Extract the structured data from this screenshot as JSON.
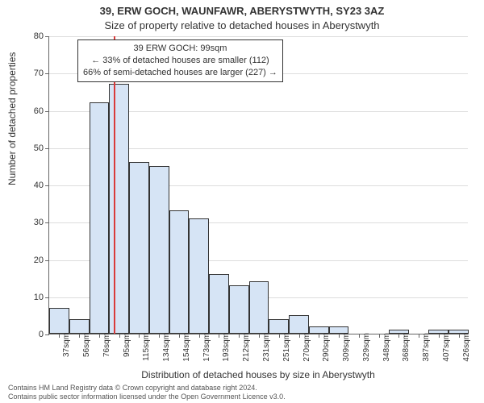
{
  "titles": {
    "line1": "39, ERW GOCH, WAUNFAWR, ABERYSTWYTH, SY23 3AZ",
    "line2": "Size of property relative to detached houses in Aberystwyth"
  },
  "axes": {
    "ylabel": "Number of detached properties",
    "xlabel": "Distribution of detached houses by size in Aberystwyth",
    "ylim": [
      0,
      80
    ],
    "yticks": [
      0,
      10,
      20,
      30,
      40,
      50,
      60,
      70,
      80
    ],
    "grid_color": "#dddddd",
    "axis_color": "#666666",
    "label_fontsize": 12,
    "tick_fontsize": 11
  },
  "chart": {
    "type": "histogram",
    "bar_fill": "#d6e4f5",
    "bar_stroke": "#333333",
    "categories": [
      "37sqm",
      "56sqm",
      "76sqm",
      "95sqm",
      "115sqm",
      "134sqm",
      "154sqm",
      "173sqm",
      "193sqm",
      "212sqm",
      "231sqm",
      "251sqm",
      "270sqm",
      "290sqm",
      "309sqm",
      "329sqm",
      "348sqm",
      "368sqm",
      "387sqm",
      "407sqm",
      "426sqm"
    ],
    "values": [
      7,
      4,
      62,
      67,
      46,
      45,
      33,
      31,
      16,
      13,
      14,
      4,
      5,
      2,
      2,
      0,
      0,
      1,
      0,
      1,
      1
    ],
    "plot_bg": "#ffffff"
  },
  "marker": {
    "bin_index": 3,
    "fraction_in_bin": 0.25,
    "color": "#d93a3a",
    "width": 2
  },
  "annotation": {
    "line1": "39 ERW GOCH: 99sqm",
    "line2": "← 33% of detached houses are smaller (112)",
    "line3": "66% of semi-detached houses are larger (227) →",
    "border_color": "#333333",
    "bg": "#ffffff",
    "fontsize": 11
  },
  "footer": {
    "line1": "Contains HM Land Registry data © Crown copyright and database right 2024.",
    "line2": "Contains public sector information licensed under the Open Government Licence v3.0."
  }
}
